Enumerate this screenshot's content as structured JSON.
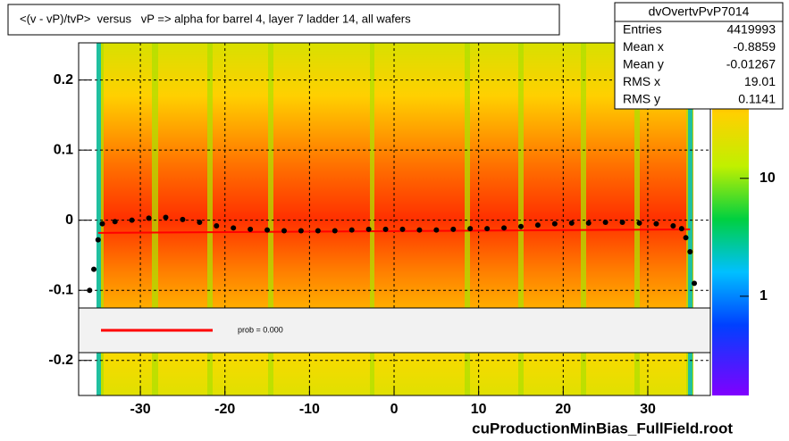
{
  "chart_data": {
    "type": "scatter",
    "title": "<(v - vP)/tvP>  versus   vP => alpha for barrel 4, layer 7 ladder 14, all wafers",
    "footer": "cuProductionMinBias_FullField.root",
    "xlim": [
      -37.3,
      37.4
    ],
    "xticks": [
      -30,
      -20,
      -10,
      0,
      10,
      20,
      30
    ],
    "ylim": [
      -0.25,
      0.253
    ],
    "yticks": [
      -0.2,
      -0.1,
      0,
      0.1,
      0.2
    ],
    "grid": true,
    "zlim": [
      0.144,
      141
    ],
    "zticks": [
      1,
      10
    ],
    "zscale": "log",
    "series": [
      {
        "color": "#000000",
        "x": [
          -36,
          -35.5,
          -35,
          -34.5,
          -33,
          -31,
          -29,
          -27,
          -25,
          -23,
          -21,
          -19,
          -17,
          -15,
          -13,
          -11,
          -9,
          -7,
          -5,
          -3,
          -1,
          1,
          3,
          5,
          7,
          9,
          11,
          13,
          15,
          17,
          19,
          21,
          23,
          25,
          27,
          29,
          31,
          33,
          34,
          34.5,
          35,
          35.5
        ],
        "values": [
          -0.1,
          -0.07,
          -0.028,
          -0.005,
          -0.002,
          0.0,
          0.003,
          0.004,
          0.001,
          -0.003,
          -0.008,
          -0.011,
          -0.013,
          -0.014,
          -0.015,
          -0.015,
          -0.015,
          -0.015,
          -0.014,
          -0.013,
          -0.013,
          -0.013,
          -0.014,
          -0.014,
          -0.013,
          -0.012,
          -0.012,
          -0.011,
          -0.009,
          -0.007,
          -0.005,
          -0.004,
          -0.004,
          -0.003,
          -0.003,
          -0.004,
          -0.005,
          -0.008,
          -0.012,
          -0.025,
          -0.045,
          -0.09
        ]
      }
    ],
    "fit": {
      "color": "#ff0000",
      "x": [
        -35,
        35
      ],
      "values": [
        -0.018,
        -0.013
      ]
    },
    "legend_text": "prob = 0.000",
    "stats": {
      "title": "dvOvertvPvP7014",
      "rows": [
        [
          "Entries",
          "4419993"
        ],
        [
          "Mean x",
          "-0.8859"
        ],
        [
          "Mean y",
          "-0.01267"
        ],
        [
          "RMS x",
          "19.01"
        ],
        [
          "RMS y",
          "0.1141"
        ]
      ]
    }
  }
}
